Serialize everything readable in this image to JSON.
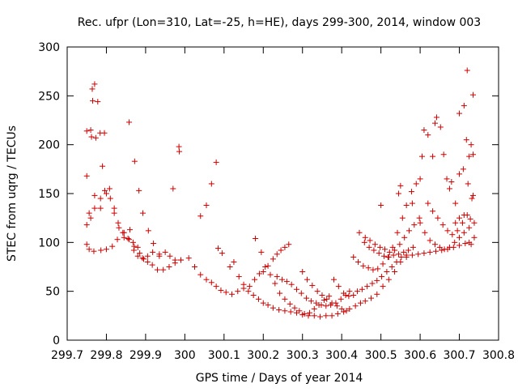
{
  "chart_data": {
    "type": "scatter",
    "title": "Rec. ufpr (Lon=310, Lat=-25, h=HE), days 299-300, 2014, window 003",
    "xlabel": "GPS time / Days of year 2014",
    "ylabel": "STEC from uqrg / TECUs",
    "xlim": [
      299.7,
      300.8
    ],
    "ylim": [
      0,
      300
    ],
    "xticks": [
      299.7,
      299.8,
      299.9,
      300.0,
      300.1,
      300.2,
      300.3,
      300.4,
      300.5,
      300.6,
      300.7,
      300.8
    ],
    "xtick_labels": [
      "299.7",
      "299.8",
      "299.9",
      "300",
      "300.1",
      "300.2",
      "300.3",
      "300.4",
      "300.5",
      "300.6",
      "300.7",
      "300.8"
    ],
    "yticks": [
      0,
      50,
      100,
      150,
      200,
      250,
      300
    ],
    "ytick_labels": [
      "0",
      "50",
      "100",
      "150",
      "200",
      "250",
      "300"
    ],
    "grid": false,
    "marker": "plus",
    "marker_color": "#cc0000",
    "points": [
      [
        299.75,
        98
      ],
      [
        299.756,
        93
      ],
      [
        299.768,
        91
      ],
      [
        299.786,
        92
      ],
      [
        299.8,
        93
      ],
      [
        299.815,
        96
      ],
      [
        299.828,
        103
      ],
      [
        299.845,
        110
      ],
      [
        299.86,
        113
      ],
      [
        299.871,
        96
      ],
      [
        299.885,
        89
      ],
      [
        299.895,
        83
      ],
      [
        299.905,
        80
      ],
      [
        299.917,
        77
      ],
      [
        299.93,
        72
      ],
      [
        299.945,
        72
      ],
      [
        299.96,
        75
      ],
      [
        299.975,
        79
      ],
      [
        299.99,
        82
      ],
      [
        299.75,
        118
      ],
      [
        299.756,
        130
      ],
      [
        299.77,
        135
      ],
      [
        299.785,
        145
      ],
      [
        299.8,
        150
      ],
      [
        299.808,
        155
      ],
      [
        299.82,
        135
      ],
      [
        299.832,
        115
      ],
      [
        299.845,
        105
      ],
      [
        299.858,
        103
      ],
      [
        299.87,
        92
      ],
      [
        299.88,
        86
      ],
      [
        299.892,
        84
      ],
      [
        299.905,
        86
      ],
      [
        299.918,
        90
      ],
      [
        299.935,
        88
      ],
      [
        299.95,
        90
      ],
      [
        299.962,
        86
      ],
      [
        299.975,
        82
      ],
      [
        299.75,
        168
      ],
      [
        299.76,
        125
      ],
      [
        299.77,
        148
      ],
      [
        299.785,
        135
      ],
      [
        299.796,
        153
      ],
      [
        299.81,
        145
      ],
      [
        299.82,
        130
      ],
      [
        299.83,
        120
      ],
      [
        299.842,
        110
      ],
      [
        299.855,
        104
      ],
      [
        299.868,
        100
      ],
      [
        299.88,
        95
      ],
      [
        299.75,
        214
      ],
      [
        299.76,
        215
      ],
      [
        299.762,
        208
      ],
      [
        299.773,
        207
      ],
      [
        299.784,
        212
      ],
      [
        299.795,
        212
      ],
      [
        299.79,
        178
      ],
      [
        299.764,
        257
      ],
      [
        299.765,
        245
      ],
      [
        299.77,
        262
      ],
      [
        299.778,
        244
      ],
      [
        299.858,
        223
      ],
      [
        299.872,
        183
      ],
      [
        299.883,
        153
      ],
      [
        299.893,
        130
      ],
      [
        299.907,
        112
      ],
      [
        299.92,
        99
      ],
      [
        299.935,
        86
      ],
      [
        299.97,
        155
      ],
      [
        299.985,
        198
      ],
      [
        299.986,
        193
      ],
      [
        299.99,
        82
      ],
      [
        300.04,
        127
      ],
      [
        300.055,
        138
      ],
      [
        300.068,
        160
      ],
      [
        300.08,
        182
      ],
      [
        300.085,
        94
      ],
      [
        300.095,
        89
      ],
      [
        300.01,
        84
      ],
      [
        300.025,
        75
      ],
      [
        300.04,
        67
      ],
      [
        300.055,
        62
      ],
      [
        300.068,
        59
      ],
      [
        300.08,
        55
      ],
      [
        300.092,
        51
      ],
      [
        300.105,
        49
      ],
      [
        300.12,
        47
      ],
      [
        300.135,
        50
      ],
      [
        300.15,
        53
      ],
      [
        300.162,
        50
      ],
      [
        300.175,
        46
      ],
      [
        300.188,
        42
      ],
      [
        300.2,
        38
      ],
      [
        300.212,
        36
      ],
      [
        300.225,
        33
      ],
      [
        300.24,
        31
      ],
      [
        300.255,
        30
      ],
      [
        300.27,
        29
      ],
      [
        300.285,
        28
      ],
      [
        300.3,
        26
      ],
      [
        300.315,
        25
      ],
      [
        300.33,
        25
      ],
      [
        300.345,
        24
      ],
      [
        300.36,
        25
      ],
      [
        300.375,
        25
      ],
      [
        300.39,
        27
      ],
      [
        300.405,
        29
      ],
      [
        300.42,
        32
      ],
      [
        300.435,
        35
      ],
      [
        300.448,
        38
      ],
      [
        300.46,
        40
      ],
      [
        300.475,
        43
      ],
      [
        300.49,
        47
      ],
      [
        300.505,
        55
      ],
      [
        300.52,
        62
      ],
      [
        300.535,
        70
      ],
      [
        300.55,
        80
      ],
      [
        300.565,
        85
      ],
      [
        300.58,
        87
      ],
      [
        300.595,
        88
      ],
      [
        300.61,
        89
      ],
      [
        300.625,
        90
      ],
      [
        300.64,
        91
      ],
      [
        300.655,
        92
      ],
      [
        300.67,
        93
      ],
      [
        300.685,
        95
      ],
      [
        300.7,
        97
      ],
      [
        300.715,
        99
      ],
      [
        300.73,
        98
      ],
      [
        300.115,
        75
      ],
      [
        300.125,
        80
      ],
      [
        300.138,
        65
      ],
      [
        300.15,
        57
      ],
      [
        300.165,
        55
      ],
      [
        300.178,
        62
      ],
      [
        300.19,
        68
      ],
      [
        300.2,
        70
      ],
      [
        300.212,
        76
      ],
      [
        300.225,
        83
      ],
      [
        300.235,
        88
      ],
      [
        300.245,
        92
      ],
      [
        300.255,
        95
      ],
      [
        300.265,
        98
      ],
      [
        300.18,
        104
      ],
      [
        300.195,
        90
      ],
      [
        300.205,
        75
      ],
      [
        300.218,
        67
      ],
      [
        300.23,
        58
      ],
      [
        300.242,
        48
      ],
      [
        300.255,
        42
      ],
      [
        300.268,
        37
      ],
      [
        300.28,
        33
      ],
      [
        300.292,
        30
      ],
      [
        300.305,
        27
      ],
      [
        300.318,
        28
      ],
      [
        300.33,
        32
      ],
      [
        300.342,
        36
      ],
      [
        300.355,
        41
      ],
      [
        300.368,
        45
      ],
      [
        300.235,
        65
      ],
      [
        300.248,
        62
      ],
      [
        300.26,
        60
      ],
      [
        300.272,
        57
      ],
      [
        300.285,
        52
      ],
      [
        300.297,
        48
      ],
      [
        300.31,
        43
      ],
      [
        300.322,
        40
      ],
      [
        300.335,
        38
      ],
      [
        300.348,
        36
      ],
      [
        300.36,
        35
      ],
      [
        300.372,
        36
      ],
      [
        300.385,
        38
      ],
      [
        300.398,
        42
      ],
      [
        300.41,
        46
      ],
      [
        300.42,
        50
      ],
      [
        300.3,
        70
      ],
      [
        300.312,
        62
      ],
      [
        300.325,
        56
      ],
      [
        300.338,
        50
      ],
      [
        300.35,
        46
      ],
      [
        300.362,
        42
      ],
      [
        300.375,
        38
      ],
      [
        300.388,
        35
      ],
      [
        300.4,
        32
      ],
      [
        300.412,
        30
      ],
      [
        300.38,
        62
      ],
      [
        300.392,
        55
      ],
      [
        300.405,
        48
      ],
      [
        300.418,
        45
      ],
      [
        300.43,
        46
      ],
      [
        300.44,
        50
      ],
      [
        300.452,
        52
      ],
      [
        300.465,
        55
      ],
      [
        300.478,
        58
      ],
      [
        300.49,
        61
      ],
      [
        300.502,
        65
      ],
      [
        300.515,
        70
      ],
      [
        300.528,
        75
      ],
      [
        300.54,
        80
      ],
      [
        300.552,
        85
      ],
      [
        300.565,
        87
      ],
      [
        300.43,
        85
      ],
      [
        300.442,
        80
      ],
      [
        300.455,
        76
      ],
      [
        300.468,
        74
      ],
      [
        300.48,
        72
      ],
      [
        300.492,
        73
      ],
      [
        300.505,
        78
      ],
      [
        300.518,
        85
      ],
      [
        300.53,
        95
      ],
      [
        300.542,
        110
      ],
      [
        300.555,
        125
      ],
      [
        300.565,
        138
      ],
      [
        300.578,
        152
      ],
      [
        300.445,
        110
      ],
      [
        300.458,
        100
      ],
      [
        300.47,
        95
      ],
      [
        300.482,
        92
      ],
      [
        300.495,
        89
      ],
      [
        300.508,
        86
      ],
      [
        300.52,
        85
      ],
      [
        300.532,
        87
      ],
      [
        300.545,
        88
      ],
      [
        300.558,
        90
      ],
      [
        300.57,
        92
      ],
      [
        300.582,
        95
      ],
      [
        300.46,
        105
      ],
      [
        300.472,
        102
      ],
      [
        300.485,
        98
      ],
      [
        300.498,
        95
      ],
      [
        300.51,
        93
      ],
      [
        300.522,
        90
      ],
      [
        300.535,
        92
      ],
      [
        300.548,
        98
      ],
      [
        300.56,
        105
      ],
      [
        300.572,
        112
      ],
      [
        300.585,
        118
      ],
      [
        300.598,
        125
      ],
      [
        300.5,
        138
      ],
      [
        300.545,
        150
      ],
      [
        300.55,
        158
      ],
      [
        300.58,
        140
      ],
      [
        300.59,
        160
      ],
      [
        300.6,
        165
      ],
      [
        300.605,
        188
      ],
      [
        300.61,
        215
      ],
      [
        300.62,
        210
      ],
      [
        300.632,
        188
      ],
      [
        300.638,
        222
      ],
      [
        300.642,
        228
      ],
      [
        300.652,
        218
      ],
      [
        300.66,
        190
      ],
      [
        300.668,
        165
      ],
      [
        300.675,
        155
      ],
      [
        300.68,
        162
      ],
      [
        300.69,
        140
      ],
      [
        300.6,
        120
      ],
      [
        300.612,
        110
      ],
      [
        300.625,
        102
      ],
      [
        300.638,
        98
      ],
      [
        300.65,
        95
      ],
      [
        300.662,
        93
      ],
      [
        300.675,
        95
      ],
      [
        300.688,
        100
      ],
      [
        300.7,
        105
      ],
      [
        300.712,
        110
      ],
      [
        300.725,
        115
      ],
      [
        300.738,
        120
      ],
      [
        300.62,
        140
      ],
      [
        300.632,
        132
      ],
      [
        300.645,
        125
      ],
      [
        300.658,
        118
      ],
      [
        300.67,
        112
      ],
      [
        300.682,
        108
      ],
      [
        300.695,
        112
      ],
      [
        300.708,
        120
      ],
      [
        300.72,
        128
      ],
      [
        300.732,
        145
      ],
      [
        300.7,
        232
      ],
      [
        300.712,
        240
      ],
      [
        300.72,
        276
      ],
      [
        300.735,
        251
      ],
      [
        300.718,
        205
      ],
      [
        300.73,
        200
      ],
      [
        300.725,
        188
      ],
      [
        300.735,
        190
      ],
      [
        300.71,
        175
      ],
      [
        300.7,
        170
      ],
      [
        300.722,
        160
      ],
      [
        300.735,
        148
      ],
      [
        300.69,
        120
      ],
      [
        300.7,
        125
      ],
      [
        300.712,
        128
      ],
      [
        300.728,
        124
      ],
      [
        300.738,
        105
      ],
      [
        300.725,
        100
      ]
    ]
  }
}
